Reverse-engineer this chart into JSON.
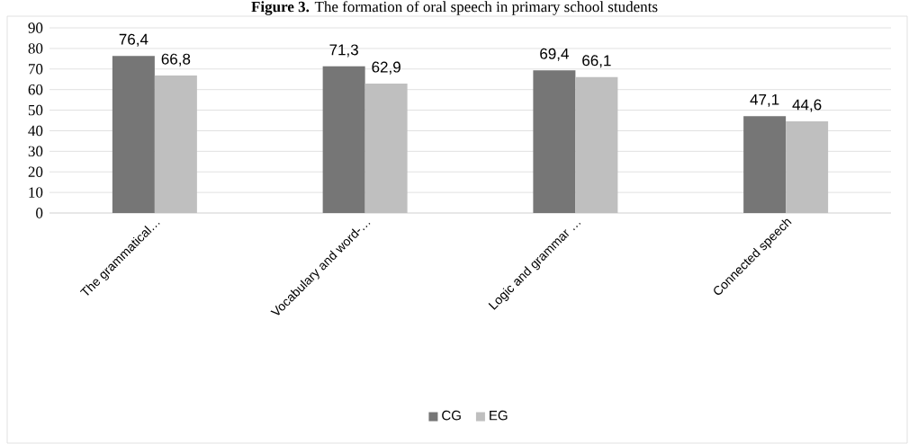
{
  "chart_data": {
    "type": "bar",
    "title": "**Figure 3.** The formation of oral speech in primary school students",
    "categories": [
      "The grammatical…",
      "Vocabulary and word-…",
      "Logic and grammar …",
      "Connected speech"
    ],
    "series": [
      {
        "name": "CG",
        "color": "#767676",
        "values": [
          76.4,
          71.3,
          69.4,
          47.1
        ],
        "value_labels": [
          "76,4",
          "71,3",
          "69,4",
          "47,1"
        ]
      },
      {
        "name": "EG",
        "color": "#bfbfbf",
        "values": [
          66.8,
          62.9,
          66.1,
          44.6
        ],
        "value_labels": [
          "66,8",
          "62,9",
          "66,1",
          "44,6"
        ]
      }
    ],
    "ylim": [
      0,
      90
    ],
    "yticks": [
      0,
      10,
      20,
      30,
      40,
      50,
      60,
      70,
      80,
      90
    ],
    "grid": "y",
    "legend": "bottom"
  }
}
